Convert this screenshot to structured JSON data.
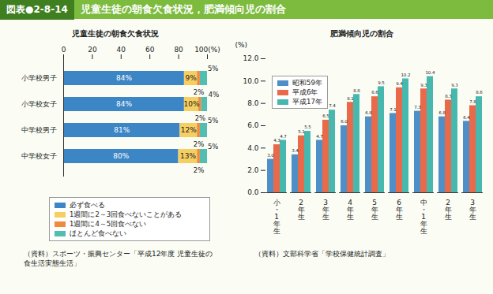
{
  "header": {
    "figure_number": "図表●2-8-14",
    "title": "児童生徒の朝食欠食状況，肥満傾向児の割合"
  },
  "chart_data": [
    {
      "type": "bar",
      "orientation": "horizontal",
      "stacked": true,
      "data_labels": true,
      "legend": "bottom",
      "title": "児童生徒の朝食欠食状況",
      "categories": [
        "小学校男子",
        "小学校女子",
        "中学校男子",
        "中学校女子"
      ],
      "series": [
        {
          "name": "必ず食べる",
          "color": "#3d86c6",
          "values": [
            84,
            84,
            81,
            80
          ],
          "value_labels": [
            "84%",
            "84%",
            "81%",
            "80%"
          ]
        },
        {
          "name": "1週間に2～3回食べないことがある",
          "color": "#f6cf63",
          "values": [
            9,
            10,
            12,
            13
          ],
          "value_labels": [
            "9%",
            "10%",
            "12%",
            "13%"
          ]
        },
        {
          "name": "1週間に4～5回食べない",
          "color": "#f08a3c",
          "values": [
            2,
            2,
            2,
            2
          ],
          "value_labels": [
            "2%",
            "2%",
            "2%",
            "2%"
          ]
        },
        {
          "name": "ほとんど食べない",
          "color": "#53bdb0",
          "values": [
            5,
            4,
            5,
            5
          ],
          "value_labels": [
            "5%",
            "4%",
            "5%",
            "5%"
          ]
        }
      ],
      "xlim": [
        0,
        100
      ],
      "xticks": [
        0,
        20,
        40,
        60,
        80,
        {
          "value": 100,
          "label": "100(%)"
        }
      ],
      "source": "（資料）スポーツ・振興センター「平成12年度 児童生徒の食生活実態生活」"
    },
    {
      "type": "bar",
      "data_labels": true,
      "legend": "top-left",
      "title": "肥満傾向児の割合",
      "ylabel": "(%)",
      "categories": [
        "小・1年生",
        "2年生",
        "3年生",
        "4年生",
        "5年生",
        "6年生",
        "中・1年生",
        "2年生",
        "3年生"
      ],
      "series": [
        {
          "name": "昭和59年",
          "color": "#4f8fc8",
          "values": [
            3.0,
            3.4,
            4.7,
            6.0,
            6.8,
            7.1,
            7.3,
            6.8,
            6.4
          ],
          "value_labels": [
            "3.0",
            "3.4",
            "4.7",
            "6.0",
            "6.8",
            "7.1",
            "7.3",
            "6.8",
            "6.4"
          ]
        },
        {
          "name": "平成6年",
          "color": "#e86a4a",
          "values": [
            4.3,
            5.1,
            6.5,
            8.1,
            8.6,
            9.4,
            9.3,
            8.3,
            7.8
          ],
          "value_labels": [
            "4.3",
            "5.1",
            "6.5",
            "8.1",
            "8.6",
            "9.4",
            "9.3",
            "8.3",
            "7.8"
          ]
        },
        {
          "name": "平成17年",
          "color": "#47b8ae",
          "values": [
            4.7,
            5.5,
            7.4,
            8.8,
            9.5,
            10.2,
            10.4,
            9.3,
            8.6
          ],
          "value_labels": [
            "4.7",
            "5.5",
            "7.4",
            "8.8",
            "9.5",
            "10.2",
            "10.4",
            "9.3",
            "8.6"
          ]
        }
      ],
      "ylim": [
        0,
        12
      ],
      "yticks": [
        {
          "value": 0,
          "label": "0.0"
        },
        {
          "value": 2,
          "label": "2.0"
        },
        {
          "value": 4,
          "label": "4.0"
        },
        {
          "value": 6,
          "label": "6.0"
        },
        {
          "value": 8,
          "label": "8.0"
        },
        {
          "value": 10,
          "label": "10.0"
        },
        {
          "value": 12,
          "label": "12.0"
        }
      ],
      "source": "（資料）文部科学省「学校保健統計調査」"
    }
  ]
}
